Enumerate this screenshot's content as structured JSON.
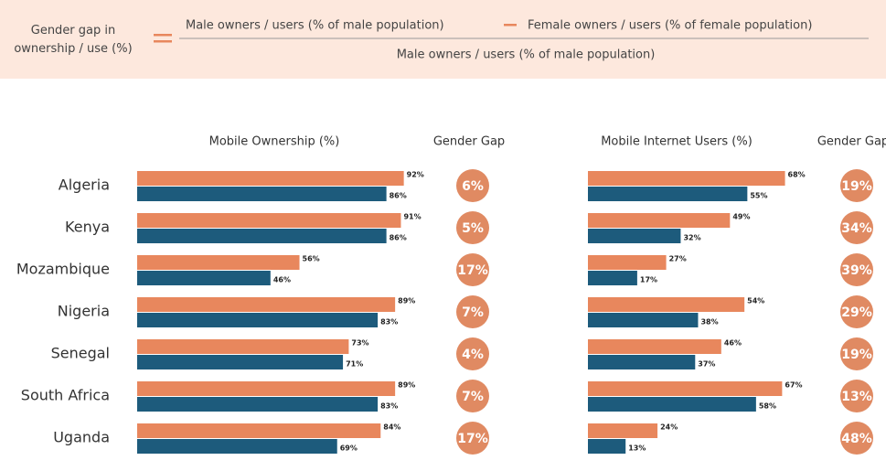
{
  "formula": {
    "label": "Gender gap in ownership / use (%)",
    "numerator_left": "Male owners / users (% of male population)",
    "numerator_right": "Female owners / users (% of female population)",
    "denominator": "Male owners / users (% of male population)"
  },
  "chart_data": [
    {
      "type": "bar",
      "title": "Mobile Ownership (%)",
      "categories": [
        "Algeria",
        "Kenya",
        "Mozambique",
        "Nigeria",
        "Senegal",
        "South Africa",
        "Uganda"
      ],
      "series": [
        {
          "color": "#e8875d",
          "values": [
            92,
            91,
            56,
            89,
            73,
            89,
            84
          ],
          "value_labels": [
            "92%",
            "91%",
            "56%",
            "89%",
            "73%",
            "89%",
            "84%"
          ]
        },
        {
          "color": "#1d5b7c",
          "values": [
            86,
            86,
            46,
            83,
            71,
            83,
            69
          ],
          "value_labels": [
            "86%",
            "86%",
            "46%",
            "83%",
            "71%",
            "83%",
            "69%"
          ]
        }
      ],
      "gap": {
        "title": "Gender Gap",
        "color": "#e08a62",
        "values": [
          6,
          5,
          17,
          7,
          4,
          7,
          17
        ],
        "value_labels": [
          "6%",
          "5%",
          "17%",
          "7%",
          "4%",
          "7%",
          "17%"
        ]
      }
    },
    {
      "type": "bar",
      "title": "Mobile Internet Users (%)",
      "categories": [
        "Algeria",
        "Kenya",
        "Mozambique",
        "Nigeria",
        "Senegal",
        "South Africa",
        "Uganda"
      ],
      "series": [
        {
          "color": "#e8875d",
          "values": [
            68,
            49,
            27,
            54,
            46,
            67,
            24
          ],
          "value_labels": [
            "68%",
            "49%",
            "27%",
            "54%",
            "46%",
            "67%",
            "24%"
          ]
        },
        {
          "color": "#1d5b7c",
          "values": [
            55,
            32,
            17,
            38,
            37,
            58,
            13
          ],
          "value_labels": [
            "55%",
            "32%",
            "17%",
            "38%",
            "37%",
            "58%",
            "13%"
          ]
        }
      ],
      "gap": {
        "title": "Gender Gap",
        "color": "#e08a62",
        "values": [
          19,
          34,
          39,
          29,
          19,
          13,
          48
        ],
        "value_labels": [
          "19%",
          "34%",
          "39%",
          "29%",
          "19%",
          "13%",
          "48%"
        ]
      }
    }
  ]
}
